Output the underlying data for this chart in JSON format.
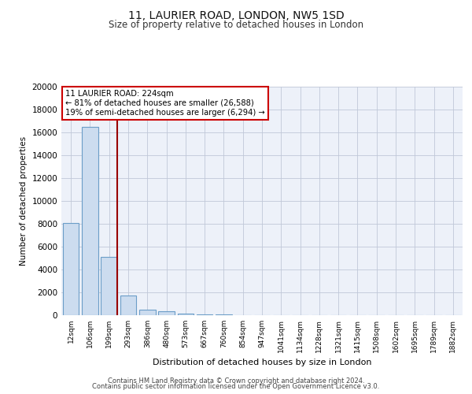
{
  "title_line1": "11, LAURIER ROAD, LONDON, NW5 1SD",
  "title_line2": "Size of property relative to detached houses in London",
  "xlabel": "Distribution of detached houses by size in London",
  "ylabel": "Number of detached properties",
  "categories": [
    "12sqm",
    "106sqm",
    "199sqm",
    "293sqm",
    "386sqm",
    "480sqm",
    "573sqm",
    "667sqm",
    "760sqm",
    "854sqm",
    "947sqm",
    "1041sqm",
    "1134sqm",
    "1228sqm",
    "1321sqm",
    "1415sqm",
    "1508sqm",
    "1602sqm",
    "1695sqm",
    "1789sqm",
    "1882sqm"
  ],
  "values": [
    8050,
    16500,
    5100,
    1750,
    450,
    350,
    150,
    100,
    70,
    0,
    0,
    0,
    0,
    0,
    0,
    0,
    0,
    0,
    0,
    0,
    0
  ],
  "bar_color": "#ccdcef",
  "bar_edge_color": "#6b9dc8",
  "vline_color": "#990000",
  "annotation_text": "11 LAURIER ROAD: 224sqm\n← 81% of detached houses are smaller (26,588)\n19% of semi-detached houses are larger (6,294) →",
  "annotation_box_color": "#ffffff",
  "annotation_box_edge": "#cc0000",
  "ylim": [
    0,
    20000
  ],
  "yticks": [
    0,
    2000,
    4000,
    6000,
    8000,
    10000,
    12000,
    14000,
    16000,
    18000,
    20000
  ],
  "footer_line1": "Contains HM Land Registry data © Crown copyright and database right 2024.",
  "footer_line2": "Contains public sector information licensed under the Open Government Licence v3.0.",
  "background_color": "#ffffff",
  "plot_bg_color": "#edf1f9"
}
